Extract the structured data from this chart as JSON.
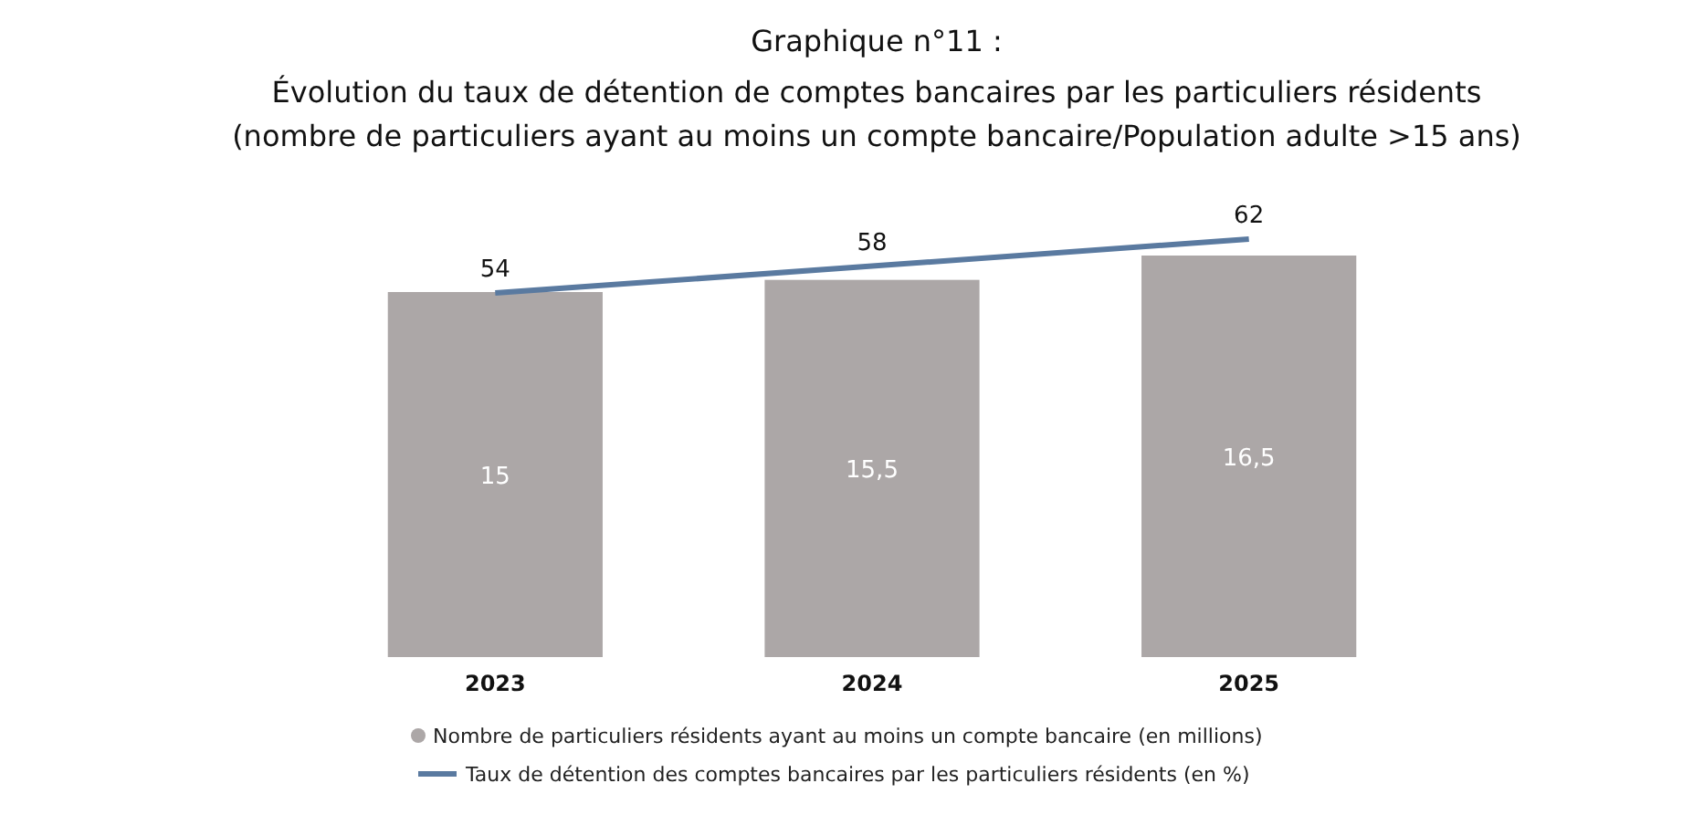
{
  "chart_data": {
    "type": "bar",
    "title": "Graphique n°11 :",
    "subtitle": "Évolution du taux de détention de comptes bancaires par les particuliers résidents (nombre de particuliers ayant au moins un compte bancaire/Population adulte >15 ans)",
    "categories": [
      "2023",
      "2024",
      "2025"
    ],
    "series": [
      {
        "name": "Nombre de particuliers résidents ayant au moins un compte bancaire (en millions)",
        "color": "#aca7a7",
        "values": [
          15,
          15.5,
          16.5
        ],
        "value_labels": [
          "15",
          "15,5",
          "16,5"
        ]
      },
      {
        "name": "Taux de détention des comptes bancaires par les particuliers résidents (en %)",
        "type": "line",
        "axis": "y2",
        "color": "#5a7aa0",
        "values": [
          54,
          58,
          62
        ]
      }
    ],
    "tick_labels": "x",
    "data_labels": true,
    "legend": "bottom",
    "grid": false,
    "marker": "none"
  }
}
